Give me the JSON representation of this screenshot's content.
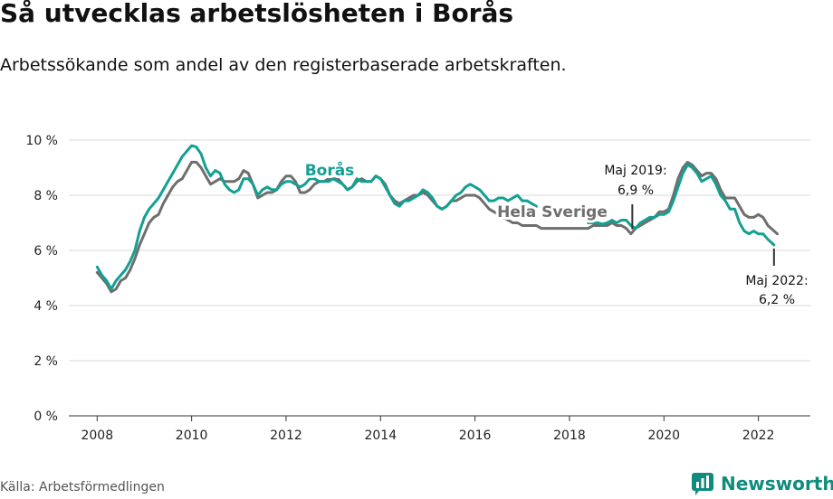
{
  "header": {
    "title": "Så utvecklas arbetslösheten i Borås",
    "subtitle": "Arbetssökande som andel av den registerbaserade arbetskraften."
  },
  "footer": {
    "source": "Källa: Arbetsförmedlingen",
    "brand": "Newsworthy"
  },
  "colors": {
    "boras": "#13a092",
    "sverige": "#6e6e6e",
    "grid": "#d9d9d9",
    "brand": "#0f8c7e"
  },
  "chart_data": {
    "type": "line",
    "title": "Så utvecklas arbetslösheten i Borås",
    "xlabel": "",
    "ylabel": "",
    "xlim": [
      2007.4,
      2023.1
    ],
    "ylim": [
      0,
      10
    ],
    "x_ticks": [
      2008,
      2010,
      2012,
      2014,
      2016,
      2018,
      2020,
      2022
    ],
    "x_tick_labels": [
      "2008",
      "2010",
      "2012",
      "2014",
      "2016",
      "2018",
      "2020",
      "2022"
    ],
    "y_ticks": [
      0,
      2,
      4,
      6,
      8,
      10
    ],
    "y_tick_labels": [
      "0 %",
      "2 %",
      "4 %",
      "6 %",
      "8 %",
      "10 %"
    ],
    "grid": true,
    "series": [
      {
        "name": "Borås",
        "label": "Borås",
        "points": [
          [
            2008.0,
            5.4
          ],
          [
            2008.1,
            5.1
          ],
          [
            2008.2,
            4.9
          ],
          [
            2008.3,
            4.6
          ],
          [
            2008.4,
            4.9
          ],
          [
            2008.5,
            5.1
          ],
          [
            2008.6,
            5.3
          ],
          [
            2008.7,
            5.6
          ],
          [
            2008.8,
            6.0
          ],
          [
            2008.9,
            6.7
          ],
          [
            2009.0,
            7.2
          ],
          [
            2009.1,
            7.5
          ],
          [
            2009.2,
            7.7
          ],
          [
            2009.3,
            7.9
          ],
          [
            2009.4,
            8.2
          ],
          [
            2009.5,
            8.5
          ],
          [
            2009.6,
            8.8
          ],
          [
            2009.7,
            9.1
          ],
          [
            2009.8,
            9.4
          ],
          [
            2009.9,
            9.6
          ],
          [
            2010.0,
            9.8
          ],
          [
            2010.1,
            9.75
          ],
          [
            2010.2,
            9.5
          ],
          [
            2010.3,
            9.0
          ],
          [
            2010.4,
            8.7
          ],
          [
            2010.5,
            8.9
          ],
          [
            2010.6,
            8.8
          ],
          [
            2010.7,
            8.4
          ],
          [
            2010.8,
            8.2
          ],
          [
            2010.9,
            8.1
          ],
          [
            2011.0,
            8.2
          ],
          [
            2011.1,
            8.6
          ],
          [
            2011.2,
            8.6
          ],
          [
            2011.3,
            8.4
          ],
          [
            2011.4,
            8.0
          ],
          [
            2011.5,
            8.2
          ],
          [
            2011.6,
            8.3
          ],
          [
            2011.7,
            8.2
          ],
          [
            2011.8,
            8.2
          ],
          [
            2011.9,
            8.4
          ],
          [
            2012.0,
            8.5
          ],
          [
            2012.1,
            8.5
          ],
          [
            2012.2,
            8.4
          ],
          [
            2012.3,
            8.3
          ],
          [
            2012.4,
            8.4
          ],
          [
            2012.5,
            8.6
          ],
          [
            2012.6,
            8.6
          ],
          [
            2012.7,
            8.5
          ],
          [
            2012.8,
            8.5
          ],
          [
            2012.9,
            8.5
          ],
          [
            2013.0,
            8.6
          ],
          [
            2013.1,
            8.5
          ],
          [
            2013.2,
            8.4
          ],
          [
            2013.3,
            8.2
          ],
          [
            2013.4,
            8.3
          ],
          [
            2013.5,
            8.6
          ],
          [
            2013.6,
            8.5
          ],
          [
            2013.7,
            8.5
          ],
          [
            2013.8,
            8.5
          ],
          [
            2013.9,
            8.7
          ],
          [
            2014.0,
            8.6
          ],
          [
            2014.1,
            8.3
          ],
          [
            2014.2,
            8.0
          ],
          [
            2014.3,
            7.7
          ],
          [
            2014.4,
            7.6
          ],
          [
            2014.5,
            7.8
          ],
          [
            2014.6,
            7.8
          ],
          [
            2014.7,
            7.9
          ],
          [
            2014.8,
            8.0
          ],
          [
            2014.9,
            8.2
          ],
          [
            2015.0,
            8.1
          ],
          [
            2015.1,
            7.9
          ],
          [
            2015.2,
            7.6
          ],
          [
            2015.3,
            7.5
          ],
          [
            2015.4,
            7.6
          ],
          [
            2015.5,
            7.8
          ],
          [
            2015.6,
            8.0
          ],
          [
            2015.7,
            8.1
          ],
          [
            2015.8,
            8.3
          ],
          [
            2015.9,
            8.4
          ],
          [
            2016.0,
            8.3
          ],
          [
            2016.1,
            8.2
          ],
          [
            2016.2,
            8.0
          ],
          [
            2016.3,
            7.8
          ],
          [
            2016.4,
            7.8
          ],
          [
            2016.5,
            7.9
          ],
          [
            2016.6,
            7.9
          ],
          [
            2016.7,
            7.8
          ],
          [
            2016.8,
            7.9
          ],
          [
            2016.9,
            8.0
          ],
          [
            2017.0,
            7.8
          ],
          [
            2017.1,
            7.8
          ],
          [
            2017.2,
            7.7
          ],
          [
            2017.3,
            7.6
          ],
          [
            2018.4,
            7.0
          ],
          [
            2018.5,
            7.0
          ],
          [
            2018.6,
            7.0
          ],
          [
            2018.7,
            6.95
          ],
          [
            2018.8,
            7.0
          ],
          [
            2018.9,
            7.1
          ],
          [
            2019.0,
            7.0
          ],
          [
            2019.1,
            7.1
          ],
          [
            2019.2,
            7.1
          ],
          [
            2019.3,
            6.9
          ],
          [
            2019.4,
            6.8
          ],
          [
            2019.5,
            7.0
          ],
          [
            2019.6,
            7.1
          ],
          [
            2019.7,
            7.2
          ],
          [
            2019.8,
            7.2
          ],
          [
            2019.9,
            7.3
          ],
          [
            2020.0,
            7.3
          ],
          [
            2020.1,
            7.4
          ],
          [
            2020.2,
            7.8
          ],
          [
            2020.3,
            8.3
          ],
          [
            2020.4,
            8.8
          ],
          [
            2020.5,
            9.1
          ],
          [
            2020.6,
            9.0
          ],
          [
            2020.7,
            8.8
          ],
          [
            2020.8,
            8.5
          ],
          [
            2020.9,
            8.6
          ],
          [
            2021.0,
            8.7
          ],
          [
            2021.1,
            8.4
          ],
          [
            2021.2,
            8.0
          ],
          [
            2021.3,
            7.8
          ],
          [
            2021.4,
            7.5
          ],
          [
            2021.5,
            7.5
          ],
          [
            2021.6,
            7.0
          ],
          [
            2021.7,
            6.7
          ],
          [
            2021.8,
            6.6
          ],
          [
            2021.9,
            6.7
          ],
          [
            2022.0,
            6.6
          ],
          [
            2022.1,
            6.6
          ],
          [
            2022.2,
            6.4
          ],
          [
            2022.33,
            6.2
          ]
        ]
      },
      {
        "name": "Hela Sverige",
        "label": "Hela Sverige",
        "points": [
          [
            2008.0,
            5.2
          ],
          [
            2008.1,
            5.0
          ],
          [
            2008.2,
            4.8
          ],
          [
            2008.3,
            4.5
          ],
          [
            2008.4,
            4.6
          ],
          [
            2008.5,
            4.9
          ],
          [
            2008.6,
            5.0
          ],
          [
            2008.7,
            5.3
          ],
          [
            2008.8,
            5.7
          ],
          [
            2008.9,
            6.2
          ],
          [
            2009.0,
            6.6
          ],
          [
            2009.1,
            7.0
          ],
          [
            2009.2,
            7.2
          ],
          [
            2009.3,
            7.3
          ],
          [
            2009.4,
            7.7
          ],
          [
            2009.5,
            8.0
          ],
          [
            2009.6,
            8.3
          ],
          [
            2009.7,
            8.5
          ],
          [
            2009.8,
            8.6
          ],
          [
            2009.9,
            8.9
          ],
          [
            2010.0,
            9.2
          ],
          [
            2010.1,
            9.2
          ],
          [
            2010.2,
            9.0
          ],
          [
            2010.3,
            8.7
          ],
          [
            2010.4,
            8.4
          ],
          [
            2010.5,
            8.5
          ],
          [
            2010.6,
            8.6
          ],
          [
            2010.7,
            8.5
          ],
          [
            2010.8,
            8.5
          ],
          [
            2010.9,
            8.5
          ],
          [
            2011.0,
            8.6
          ],
          [
            2011.1,
            8.9
          ],
          [
            2011.2,
            8.8
          ],
          [
            2011.3,
            8.4
          ],
          [
            2011.4,
            7.9
          ],
          [
            2011.5,
            8.0
          ],
          [
            2011.6,
            8.1
          ],
          [
            2011.7,
            8.1
          ],
          [
            2011.8,
            8.2
          ],
          [
            2011.9,
            8.5
          ],
          [
            2012.0,
            8.7
          ],
          [
            2012.1,
            8.7
          ],
          [
            2012.2,
            8.5
          ],
          [
            2012.3,
            8.1
          ],
          [
            2012.4,
            8.1
          ],
          [
            2012.5,
            8.2
          ],
          [
            2012.6,
            8.4
          ],
          [
            2012.7,
            8.5
          ],
          [
            2012.8,
            8.5
          ],
          [
            2012.9,
            8.6
          ],
          [
            2013.0,
            8.6
          ],
          [
            2013.1,
            8.6
          ],
          [
            2013.2,
            8.4
          ],
          [
            2013.3,
            8.2
          ],
          [
            2013.4,
            8.3
          ],
          [
            2013.5,
            8.5
          ],
          [
            2013.6,
            8.6
          ],
          [
            2013.7,
            8.5
          ],
          [
            2013.8,
            8.5
          ],
          [
            2013.9,
            8.7
          ],
          [
            2014.0,
            8.6
          ],
          [
            2014.1,
            8.4
          ],
          [
            2014.2,
            8.0
          ],
          [
            2014.3,
            7.8
          ],
          [
            2014.4,
            7.7
          ],
          [
            2014.5,
            7.8
          ],
          [
            2014.6,
            7.9
          ],
          [
            2014.7,
            8.0
          ],
          [
            2014.8,
            8.0
          ],
          [
            2014.9,
            8.1
          ],
          [
            2015.0,
            8.0
          ],
          [
            2015.1,
            7.8
          ],
          [
            2015.2,
            7.6
          ],
          [
            2015.3,
            7.5
          ],
          [
            2015.4,
            7.6
          ],
          [
            2015.5,
            7.8
          ],
          [
            2015.6,
            7.8
          ],
          [
            2015.7,
            7.9
          ],
          [
            2015.8,
            8.0
          ],
          [
            2015.9,
            8.0
          ],
          [
            2016.0,
            8.0
          ],
          [
            2016.1,
            7.9
          ],
          [
            2016.2,
            7.7
          ],
          [
            2016.3,
            7.5
          ],
          [
            2016.4,
            7.4
          ],
          [
            2016.5,
            7.3
          ],
          [
            2016.6,
            7.2
          ],
          [
            2016.7,
            7.1
          ],
          [
            2016.8,
            7.0
          ],
          [
            2016.9,
            7.0
          ],
          [
            2017.0,
            6.9
          ],
          [
            2017.1,
            6.9
          ],
          [
            2017.2,
            6.9
          ],
          [
            2017.3,
            6.9
          ],
          [
            2017.4,
            6.8
          ],
          [
            2017.5,
            6.8
          ],
          [
            2017.6,
            6.8
          ],
          [
            2017.7,
            6.8
          ],
          [
            2017.8,
            6.8
          ],
          [
            2017.9,
            6.8
          ],
          [
            2018.0,
            6.8
          ],
          [
            2018.1,
            6.8
          ],
          [
            2018.2,
            6.8
          ],
          [
            2018.3,
            6.8
          ],
          [
            2018.4,
            6.8
          ],
          [
            2018.5,
            6.9
          ],
          [
            2018.6,
            6.9
          ],
          [
            2018.7,
            6.9
          ],
          [
            2018.8,
            6.9
          ],
          [
            2018.9,
            7.0
          ],
          [
            2019.0,
            6.9
          ],
          [
            2019.1,
            6.9
          ],
          [
            2019.2,
            6.8
          ],
          [
            2019.3,
            6.6
          ],
          [
            2019.4,
            6.8
          ],
          [
            2019.5,
            6.9
          ],
          [
            2019.6,
            7.0
          ],
          [
            2019.7,
            7.1
          ],
          [
            2019.8,
            7.2
          ],
          [
            2019.9,
            7.4
          ],
          [
            2020.0,
            7.4
          ],
          [
            2020.1,
            7.5
          ],
          [
            2020.2,
            8.0
          ],
          [
            2020.3,
            8.6
          ],
          [
            2020.4,
            9.0
          ],
          [
            2020.5,
            9.2
          ],
          [
            2020.6,
            9.1
          ],
          [
            2020.7,
            8.9
          ],
          [
            2020.8,
            8.7
          ],
          [
            2020.9,
            8.8
          ],
          [
            2021.0,
            8.8
          ],
          [
            2021.1,
            8.6
          ],
          [
            2021.2,
            8.2
          ],
          [
            2021.3,
            7.9
          ],
          [
            2021.4,
            7.9
          ],
          [
            2021.5,
            7.9
          ],
          [
            2021.6,
            7.6
          ],
          [
            2021.7,
            7.3
          ],
          [
            2021.8,
            7.2
          ],
          [
            2021.9,
            7.2
          ],
          [
            2022.0,
            7.3
          ],
          [
            2022.1,
            7.2
          ],
          [
            2022.2,
            6.9
          ],
          [
            2022.4,
            6.6
          ]
        ]
      }
    ],
    "annotations": [
      {
        "label_line1": "Maj 2019:",
        "label_line2": "6,9 %",
        "x": 2019.33,
        "y": 6.9
      },
      {
        "label_line1": "Maj 2022:",
        "label_line2": "6,2 %",
        "x": 2022.33,
        "y": 6.2
      }
    ]
  }
}
